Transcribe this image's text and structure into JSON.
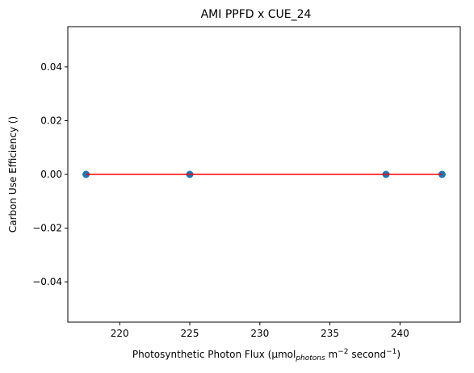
{
  "chart_data": {
    "type": "scatter",
    "title": "AMI PPFD x CUE_24",
    "xlabel": {
      "prefix": "Photosynthetic Photon Flux (µmol",
      "sub": "photons",
      "unit_m": " m",
      "sup_m": "−2",
      "unit_s": " second",
      "sup_s": "−1",
      "suffix": ")"
    },
    "ylabel": "Carbon Use Efficiency ()",
    "xlim": [
      216.3,
      244.3
    ],
    "ylim": [
      -0.055,
      0.055
    ],
    "xticks": [
      220,
      225,
      230,
      235,
      240
    ],
    "yticks": [
      -0.04,
      -0.02,
      0.0,
      0.02,
      0.04
    ],
    "xtick_labels": [
      "220",
      "225",
      "230",
      "235",
      "240"
    ],
    "ytick_labels": [
      "−0.04",
      "−0.02",
      "0.00",
      "0.02",
      "0.04"
    ],
    "series": [
      {
        "kind": "points",
        "color": "#1f77b4",
        "x": [
          217.6,
          225.0,
          239.0,
          243.0
        ],
        "y": [
          0.0,
          0.0,
          0.0,
          0.0
        ]
      },
      {
        "kind": "line",
        "color": "#ff0000",
        "x": [
          217.6,
          243.0
        ],
        "y": [
          0.0,
          0.0
        ]
      }
    ],
    "grid": false,
    "legend": "none"
  }
}
